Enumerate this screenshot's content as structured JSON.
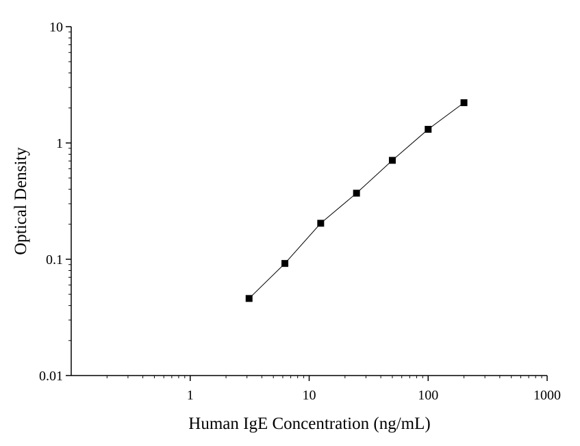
{
  "chart_data": {
    "type": "scatter",
    "title": "",
    "xlabel": "Human IgE Concentration (ng/mL)",
    "ylabel": "Optical Density",
    "x_scale": "log",
    "y_scale": "log",
    "xlim": [
      0.1,
      1000
    ],
    "ylim": [
      0.01,
      10
    ],
    "x_ticks": [
      1,
      10,
      100,
      1000
    ],
    "x_tick_labels": [
      "1",
      "10",
      "100",
      "1000"
    ],
    "y_ticks": [
      0.01,
      0.1,
      1,
      10
    ],
    "y_tick_labels": [
      "0.01",
      "0.1",
      "1",
      "10"
    ],
    "grid": false,
    "legend": "none",
    "series": [
      {
        "marker": "square",
        "line": "straight connecting line",
        "color": "#000000",
        "x": [
          3.125,
          6.25,
          12.5,
          25,
          50,
          100,
          200
        ],
        "y": [
          0.046,
          0.092,
          0.204,
          0.37,
          0.709,
          1.31,
          2.22
        ]
      }
    ]
  }
}
